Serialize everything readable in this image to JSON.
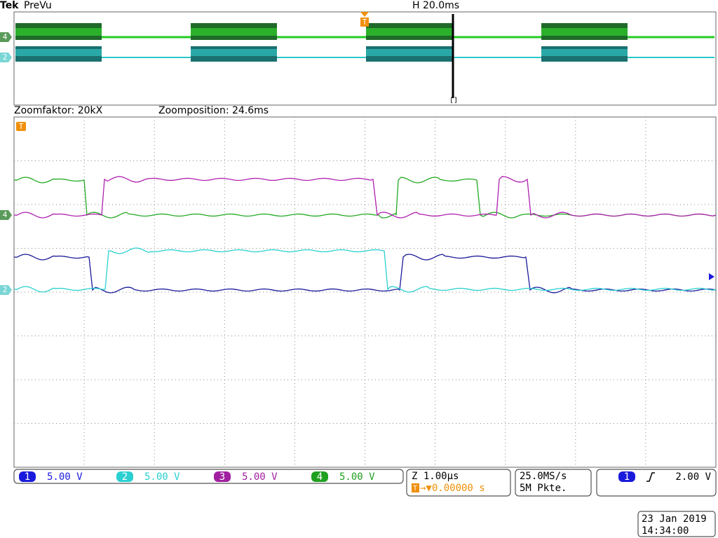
{
  "header": {
    "brand": "Tek",
    "mode": "PreVu",
    "timebase": "H 20.0ms"
  },
  "zoom": {
    "factor": "Zoomfaktor: 20kX",
    "position": "Zoomposition: 24.6ms"
  },
  "markers": {
    "trigger": "T",
    "ch4": "4",
    "ch2": "2"
  },
  "channels": [
    {
      "number": "1",
      "scale": "5.00 V"
    },
    {
      "number": "2",
      "scale": "5.00 V"
    },
    {
      "number": "3",
      "scale": "5.00 V"
    },
    {
      "number": "4",
      "scale": "5.00 V"
    }
  ],
  "horizontal": {
    "zoom_scale": "Z 1.00µs",
    "trigger_position": "→▼0.00000 s"
  },
  "acquisition": {
    "sample_rate": "25.0MS/s",
    "record_length": "5M Pkte."
  },
  "trigger": {
    "source": "1",
    "level": "2.00 V"
  },
  "datetime": {
    "date": "23 Jan  2019",
    "time": "14:34:00"
  }
}
